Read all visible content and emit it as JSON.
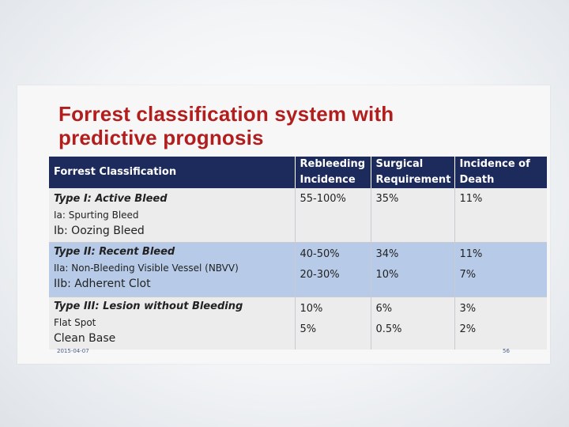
{
  "slide": {
    "title_line1": "Forrest classification system with",
    "title_line2": "predictive prognosis",
    "footer_date": "2015-04-07",
    "footer_page": "56"
  },
  "table": {
    "headers": {
      "col1": "Forrest Classification",
      "col2_line1": "Rebleeding",
      "col2_line2": "Incidence",
      "col3_line1": "Surgical",
      "col3_line2": "Requirement",
      "col4_line1": "Incidence of",
      "col4_line2": "Death"
    },
    "groups": [
      {
        "type": "Type I: Active Bleed",
        "items": [
          "Ia: Spurting Bleed",
          "Ib: Oozing Bleed"
        ],
        "rebleeding": "55-100%",
        "surgery": "35%",
        "death": "11%"
      },
      {
        "type": "Type II: Recent Bleed",
        "items": [
          "IIa: Non-Bleeding Visible Vessel (NBVV)",
          "IIb: Adherent Clot"
        ],
        "rebleeding": [
          "40-50%",
          "20-30%"
        ],
        "surgery": [
          "34%",
          "10%"
        ],
        "death": [
          "11%",
          "7%"
        ]
      },
      {
        "type": "Type III: Lesion without Bleeding",
        "items": [
          "Flat Spot",
          "Clean Base"
        ],
        "rebleeding": [
          "10%",
          "5%"
        ],
        "surgery": [
          "6%",
          "0.5%"
        ],
        "death": [
          "3%",
          "2%"
        ]
      }
    ]
  }
}
